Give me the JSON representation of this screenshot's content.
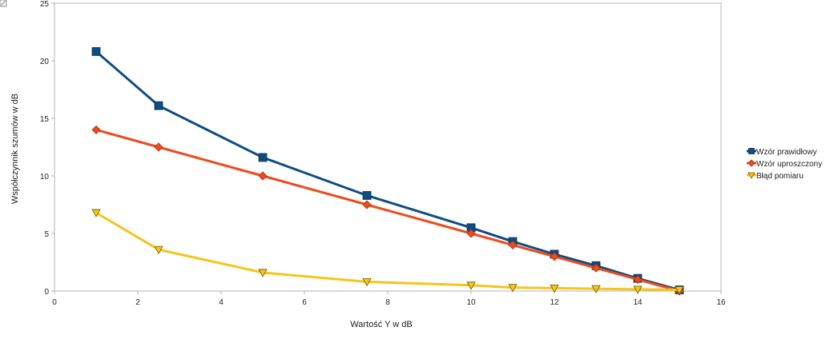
{
  "chart_data": {
    "type": "line",
    "title": "",
    "xlabel": "Wartość Y w dB",
    "ylabel": "Współczynnik szumów w dB",
    "xlim": [
      0,
      16
    ],
    "ylim": [
      0,
      25
    ],
    "x_ticks": [
      0,
      2,
      4,
      6,
      8,
      10,
      12,
      14,
      16
    ],
    "y_ticks": [
      0,
      5,
      10,
      15,
      20,
      25
    ],
    "grid": "none",
    "legend_position": "right",
    "series": [
      {
        "name": "Wzór prawidłowy",
        "color": "#0f4c81",
        "marker": "square",
        "x": [
          1,
          2.5,
          5,
          7.5,
          10,
          11,
          12,
          13,
          14,
          15
        ],
        "y": [
          20.8,
          16.1,
          11.6,
          8.3,
          5.5,
          4.3,
          3.2,
          2.2,
          1.1,
          0.1
        ]
      },
      {
        "name": "Wzór uproszczony",
        "color": "#ee4a1c",
        "marker": "diamond",
        "x": [
          1,
          2.5,
          5,
          7.5,
          10,
          11,
          12,
          13,
          14,
          15
        ],
        "y": [
          14.0,
          12.5,
          10.0,
          7.5,
          5.0,
          4.0,
          3.0,
          2.0,
          1.0,
          0.0
        ]
      },
      {
        "name": "Błąd pomiaru",
        "color": "#f5c518",
        "marker": "triangle-down",
        "x": [
          1,
          2.5,
          5,
          7.5,
          10,
          11,
          12,
          13,
          14,
          15
        ],
        "y": [
          6.8,
          3.6,
          1.6,
          0.8,
          0.5,
          0.3,
          0.25,
          0.2,
          0.15,
          0.1
        ]
      }
    ]
  }
}
